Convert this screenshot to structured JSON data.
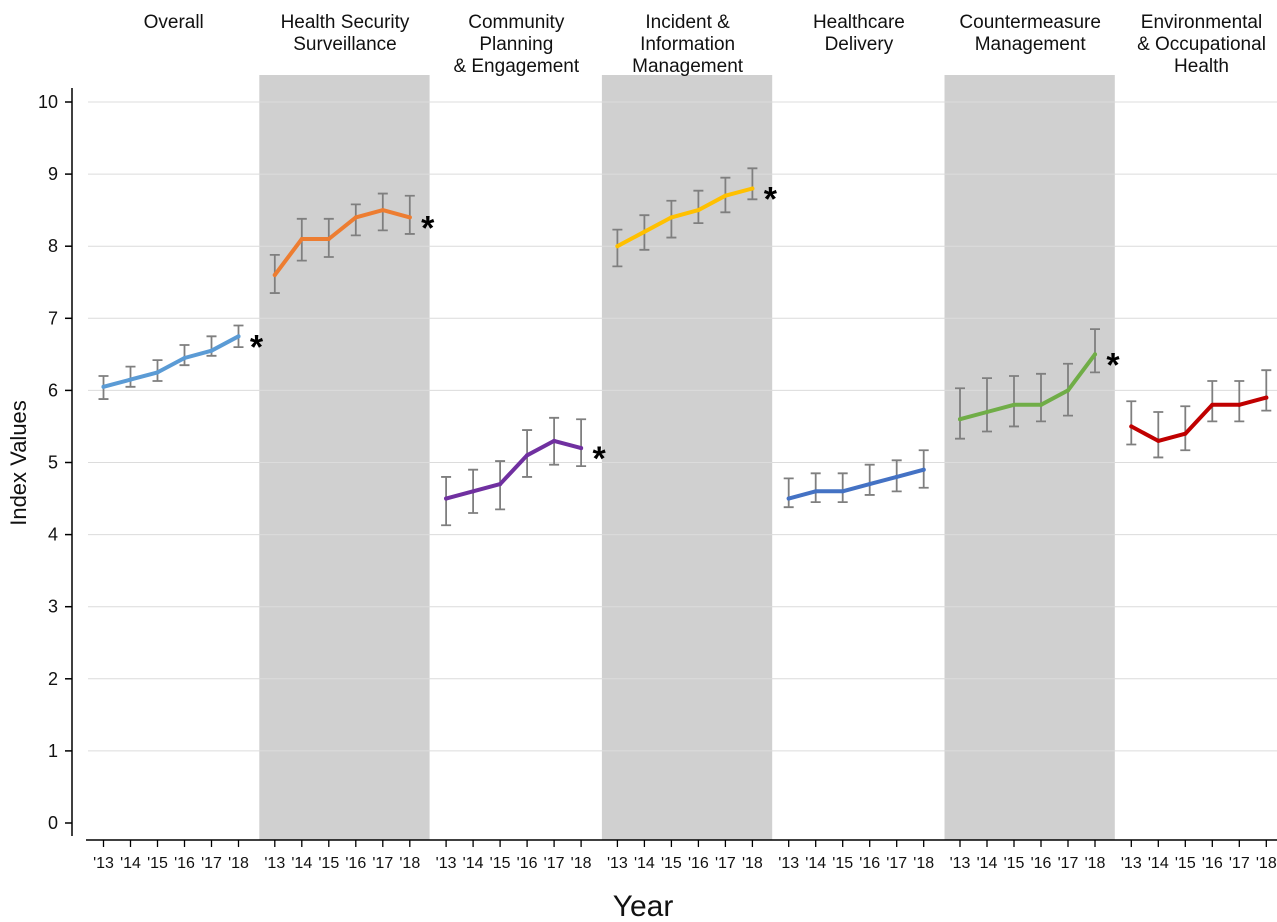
{
  "chart_data": {
    "type": "line",
    "xlabel": "Year",
    "ylabel": "Index Values",
    "ylim": [
      0,
      10
    ],
    "yticks": [
      "0",
      "1",
      "2",
      "3",
      "4",
      "5",
      "6",
      "7",
      "8",
      "9",
      "10"
    ],
    "categories": [
      "'13",
      "'14",
      "'15",
      "'16",
      "'17",
      "'18"
    ],
    "grid": true,
    "panels": [
      {
        "title": [
          "Overall"
        ],
        "shaded": false,
        "color": "#5b9bd5",
        "values": [
          6.05,
          6.15,
          6.25,
          6.45,
          6.55,
          6.75
        ],
        "lower": [
          5.88,
          6.05,
          6.13,
          6.35,
          6.48,
          6.6
        ],
        "upper": [
          6.2,
          6.33,
          6.42,
          6.63,
          6.75,
          6.9
        ],
        "significant": true,
        "marker": "*"
      },
      {
        "title": [
          "Health Security",
          "Surveillance"
        ],
        "shaded": true,
        "color": "#ed7d31",
        "values": [
          7.6,
          8.1,
          8.1,
          8.4,
          8.5,
          8.4
        ],
        "lower": [
          7.35,
          7.8,
          7.85,
          8.15,
          8.22,
          8.17
        ],
        "upper": [
          7.88,
          8.38,
          8.38,
          8.58,
          8.73,
          8.7
        ],
        "significant": true,
        "marker": "*"
      },
      {
        "title": [
          "Community",
          "Planning",
          "& Engagement"
        ],
        "shaded": false,
        "color": "#7030a0",
        "values": [
          4.5,
          4.6,
          4.7,
          5.1,
          5.3,
          5.2
        ],
        "lower": [
          4.13,
          4.3,
          4.35,
          4.8,
          4.97,
          4.95
        ],
        "upper": [
          4.8,
          4.9,
          5.02,
          5.45,
          5.62,
          5.6
        ],
        "significant": true,
        "marker": "*"
      },
      {
        "title": [
          "Incident &",
          "Information",
          "Management"
        ],
        "shaded": true,
        "color": "#ffc000",
        "values": [
          8.0,
          8.2,
          8.4,
          8.5,
          8.7,
          8.8
        ],
        "lower": [
          7.72,
          7.95,
          8.12,
          8.32,
          8.47,
          8.65
        ],
        "upper": [
          8.23,
          8.43,
          8.63,
          8.77,
          8.95,
          9.08
        ],
        "significant": true,
        "marker": "*"
      },
      {
        "title": [
          "Healthcare",
          "Delivery"
        ],
        "shaded": false,
        "color": "#4472c4",
        "values": [
          4.5,
          4.6,
          4.6,
          4.7,
          4.8,
          4.9
        ],
        "lower": [
          4.38,
          4.45,
          4.45,
          4.55,
          4.6,
          4.65
        ],
        "upper": [
          4.78,
          4.85,
          4.85,
          4.97,
          5.03,
          5.17
        ],
        "significant": false,
        "marker": ""
      },
      {
        "title": [
          "Countermeasure",
          "Management"
        ],
        "shaded": true,
        "color": "#70ad47",
        "values": [
          5.6,
          5.7,
          5.8,
          5.8,
          6.0,
          6.5
        ],
        "lower": [
          5.33,
          5.43,
          5.5,
          5.57,
          5.65,
          6.25
        ],
        "upper": [
          6.03,
          6.17,
          6.2,
          6.23,
          6.37,
          6.85
        ],
        "significant": true,
        "marker": "*"
      },
      {
        "title": [
          "Environmental",
          "& Occupational",
          "Health"
        ],
        "shaded": false,
        "color": "#c00000",
        "values": [
          5.5,
          5.3,
          5.4,
          5.8,
          5.8,
          5.9
        ],
        "lower": [
          5.25,
          5.07,
          5.17,
          5.57,
          5.57,
          5.72
        ],
        "upper": [
          5.85,
          5.7,
          5.78,
          6.13,
          6.13,
          6.28
        ],
        "significant": false,
        "marker": ""
      }
    ]
  }
}
